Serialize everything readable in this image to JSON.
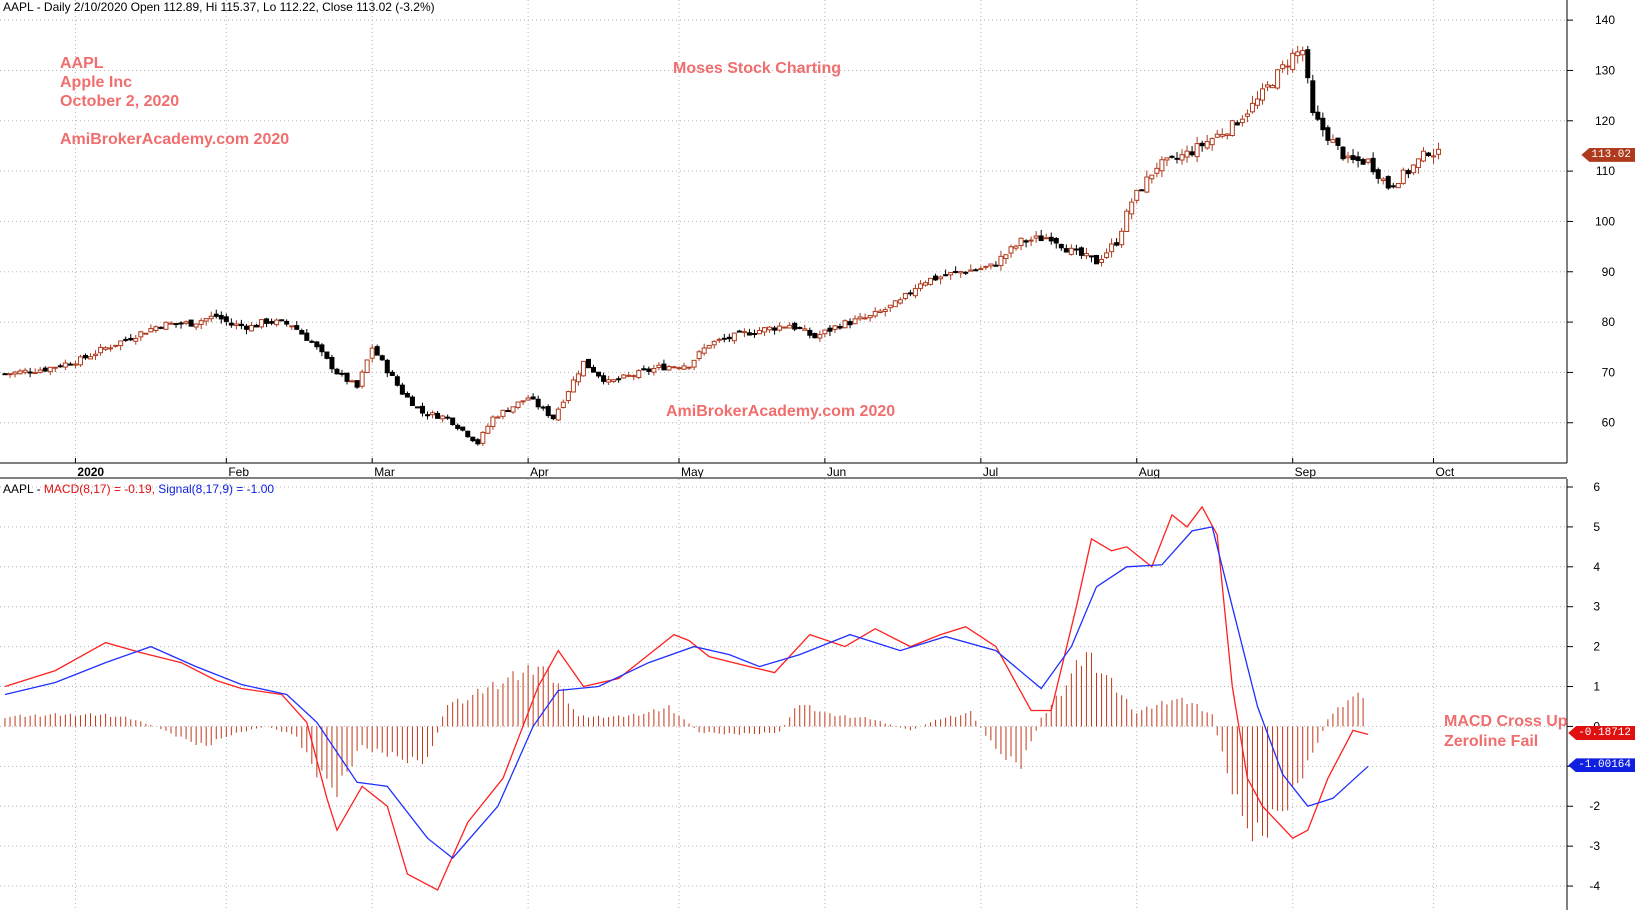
{
  "header": {
    "ohlc": "AAPL - Daily 2/10/2020 Open 112.89, Hi 115.37, Lo 112.22, Close 113.02 (-3.2%)",
    "macd_prefix": "AAPL - ",
    "macd_label": "MACD(8,17) = -0.19,",
    "signal_label": "Signal(8,17,9) = -1.00"
  },
  "annotations": {
    "ticker": "AAPL",
    "company": "Apple Inc",
    "date": "October 2, 2020",
    "watermark_top": "AmiBrokerAcademy.com  2020",
    "watermark_mid": "AmiBrokerAcademy.com  2020",
    "site": "Moses Stock Charting",
    "note_line1": "MACD Cross Up",
    "note_line2": "Zeroline Fail"
  },
  "tags": {
    "price": "113.02",
    "macd": "-0.18712",
    "signal": "-1.00164"
  },
  "colors": {
    "up": "#b03a1e",
    "down": "#000000",
    "macd": "#ff2020",
    "signal": "#2030ff",
    "histogram": "#c0391b",
    "grid": "#b4b4b4",
    "annotation": "#f06e6e"
  },
  "chart_data": [
    {
      "type": "candlestick",
      "title": "AAPL - Daily 2/10/2020 Open 112.89, Hi 115.37, Lo 112.22, Close 113.02 (-3.2%)",
      "x_labels": [
        "2020",
        "Feb",
        "Mar",
        "Apr",
        "May",
        "Jun",
        "Jul",
        "Aug",
        "Sep",
        "Oct"
      ],
      "y_ticks": [
        60,
        70,
        80,
        90,
        100,
        110,
        120,
        130,
        140
      ],
      "ylim": [
        52,
        144
      ],
      "grid": true,
      "close_path": [
        [
          0,
          69.7
        ],
        [
          8,
          70.7
        ],
        [
          15,
          72.5
        ],
        [
          19,
          74.4
        ],
        [
          25,
          77
        ],
        [
          31,
          79.5
        ],
        [
          37,
          79.8
        ],
        [
          42,
          81.2
        ],
        [
          45,
          79.5
        ],
        [
          49,
          79.1
        ],
        [
          52,
          80.2
        ],
        [
          57,
          79.5
        ],
        [
          61,
          76
        ],
        [
          66,
          70
        ],
        [
          70,
          67
        ],
        [
          73,
          75
        ],
        [
          79,
          66
        ],
        [
          83,
          62
        ],
        [
          88,
          61
        ],
        [
          94,
          56
        ],
        [
          97,
          61
        ],
        [
          104,
          65
        ],
        [
          109,
          61
        ],
        [
          115,
          72
        ],
        [
          120,
          68
        ],
        [
          130,
          71
        ],
        [
          136,
          71.6
        ],
        [
          140,
          75.7
        ],
        [
          148,
          78
        ],
        [
          156,
          79.5
        ],
        [
          161,
          77
        ],
        [
          166,
          79.5
        ],
        [
          172,
          81
        ],
        [
          178,
          84
        ],
        [
          182,
          88
        ],
        [
          190,
          90
        ],
        [
          196,
          91
        ],
        [
          202,
          96
        ],
        [
          208,
          97
        ],
        [
          212,
          94
        ],
        [
          217,
          92
        ],
        [
          221,
          96
        ],
        [
          224,
          104
        ],
        [
          229,
          111
        ],
        [
          232,
          112
        ],
        [
          236,
          114
        ],
        [
          244,
          119
        ],
        [
          249,
          124
        ],
        [
          252,
          128
        ],
        [
          256,
          133
        ],
        [
          258,
          134
        ],
        [
          260,
          121
        ],
        [
          263,
          117
        ],
        [
          267,
          112
        ],
        [
          271,
          112
        ],
        [
          275,
          107
        ],
        [
          279,
          110
        ],
        [
          283,
          114
        ],
        [
          286,
          113
        ]
      ],
      "last_bar": {
        "date": "2/10/2020",
        "open": 112.89,
        "high": 115.37,
        "low": 112.22,
        "close": 113.02
      }
    },
    {
      "type": "line",
      "title": "MACD(8,17) = -0.19, Signal(8,17,9) = -1.00",
      "y_ticks": [
        -4,
        -3,
        -2,
        -1,
        0,
        1,
        2,
        3,
        4,
        5,
        6
      ],
      "ylim": [
        -4.6,
        6.2
      ],
      "series": [
        {
          "name": "MACD(8,17)",
          "points": [
            [
              0,
              1.0
            ],
            [
              10,
              1.4
            ],
            [
              20,
              2.1
            ],
            [
              27,
              1.85
            ],
            [
              35,
              1.6
            ],
            [
              42,
              1.15
            ],
            [
              47,
              0.95
            ],
            [
              55,
              0.8
            ],
            [
              60,
              0.1
            ],
            [
              64,
              -1.8
            ],
            [
              66,
              -2.6
            ],
            [
              71,
              -1.5
            ],
            [
              76,
              -2.0
            ],
            [
              80,
              -3.7
            ],
            [
              86,
              -4.1
            ],
            [
              92,
              -2.4
            ],
            [
              99,
              -1.3
            ],
            [
              106,
              1.0
            ],
            [
              110,
              1.9
            ],
            [
              115,
              1.0
            ],
            [
              122,
              1.2
            ],
            [
              133,
              2.3
            ],
            [
              136,
              2.15
            ],
            [
              140,
              1.75
            ],
            [
              148,
              1.5
            ],
            [
              153,
              1.35
            ],
            [
              160,
              2.3
            ],
            [
              167,
              2.0
            ],
            [
              173,
              2.45
            ],
            [
              180,
              2.0
            ],
            [
              186,
              2.3
            ],
            [
              191,
              2.5
            ],
            [
              197,
              2.0
            ],
            [
              204,
              0.4
            ],
            [
              208,
              0.4
            ],
            [
              213,
              3.0
            ],
            [
              216,
              4.7
            ],
            [
              220,
              4.4
            ],
            [
              223,
              4.5
            ],
            [
              228,
              4.0
            ],
            [
              232,
              5.3
            ],
            [
              235,
              5.0
            ],
            [
              238,
              5.5
            ],
            [
              241,
              4.8
            ],
            [
              244,
              1.0
            ],
            [
              247,
              -1.3
            ],
            [
              250,
              -2.0
            ],
            [
              253,
              -2.4
            ],
            [
              256,
              -2.8
            ],
            [
              259,
              -2.6
            ],
            [
              263,
              -1.3
            ],
            [
              268,
              -0.1
            ],
            [
              271,
              -0.2
            ]
          ]
        },
        {
          "name": "Signal(8,17,9)",
          "points": [
            [
              0,
              0.8
            ],
            [
              10,
              1.1
            ],
            [
              20,
              1.6
            ],
            [
              29,
              2.0
            ],
            [
              38,
              1.5
            ],
            [
              47,
              1.05
            ],
            [
              56,
              0.8
            ],
            [
              62,
              0.1
            ],
            [
              70,
              -1.4
            ],
            [
              76,
              -1.5
            ],
            [
              84,
              -2.8
            ],
            [
              89,
              -3.3
            ],
            [
              98,
              -2.0
            ],
            [
              105,
              0.0
            ],
            [
              110,
              0.9
            ],
            [
              118,
              1.0
            ],
            [
              128,
              1.6
            ],
            [
              137,
              2.0
            ],
            [
              144,
              1.8
            ],
            [
              150,
              1.5
            ],
            [
              158,
              1.8
            ],
            [
              168,
              2.3
            ],
            [
              178,
              1.9
            ],
            [
              187,
              2.25
            ],
            [
              197,
              1.9
            ],
            [
              206,
              0.95
            ],
            [
              212,
              2.0
            ],
            [
              217,
              3.5
            ],
            [
              223,
              4.0
            ],
            [
              230,
              4.05
            ],
            [
              236,
              4.9
            ],
            [
              240,
              5.0
            ],
            [
              244,
              3.0
            ],
            [
              249,
              0.5
            ],
            [
              254,
              -1.2
            ],
            [
              259,
              -2.0
            ],
            [
              264,
              -1.8
            ],
            [
              271,
              -1.0
            ]
          ]
        }
      ],
      "histogram": {
        "name": "MACD - Signal",
        "values": [
          [
            0,
            0.25
          ],
          [
            10,
            0.3
          ],
          [
            20,
            0.3
          ],
          [
            25,
            0.2
          ],
          [
            30,
            0.0
          ],
          [
            35,
            -0.3
          ],
          [
            40,
            -0.5
          ],
          [
            45,
            -0.2
          ],
          [
            52,
            0.0
          ],
          [
            58,
            -0.25
          ],
          [
            62,
            -1.2
          ],
          [
            66,
            -1.6
          ],
          [
            71,
            -0.5
          ],
          [
            78,
            -0.8
          ],
          [
            84,
            -0.9
          ],
          [
            88,
            0.6
          ],
          [
            92,
            0.7
          ],
          [
            96,
            1.0
          ],
          [
            102,
            1.3
          ],
          [
            106,
            1.6
          ],
          [
            110,
            1.1
          ],
          [
            114,
            0.25
          ],
          [
            122,
            0.25
          ],
          [
            128,
            0.35
          ],
          [
            132,
            0.5
          ],
          [
            138,
            -0.15
          ],
          [
            146,
            -0.2
          ],
          [
            154,
            -0.15
          ],
          [
            158,
            0.6
          ],
          [
            164,
            0.3
          ],
          [
            172,
            0.2
          ],
          [
            180,
            -0.1
          ],
          [
            186,
            0.2
          ],
          [
            192,
            0.35
          ],
          [
            197,
            -0.6
          ],
          [
            202,
            -1.0
          ],
          [
            206,
            0.2
          ],
          [
            210,
            0.9
          ],
          [
            215,
            1.9
          ],
          [
            220,
            1.1
          ],
          [
            225,
            0.35
          ],
          [
            232,
            0.7
          ],
          [
            236,
            0.6
          ],
          [
            240,
            0.3
          ],
          [
            243,
            -1.2
          ],
          [
            246,
            -2.4
          ],
          [
            250,
            -2.8
          ],
          [
            255,
            -1.9
          ],
          [
            259,
            -1.0
          ],
          [
            263,
            0.2
          ],
          [
            267,
            0.7
          ],
          [
            270,
            0.8
          ]
        ]
      }
    }
  ]
}
